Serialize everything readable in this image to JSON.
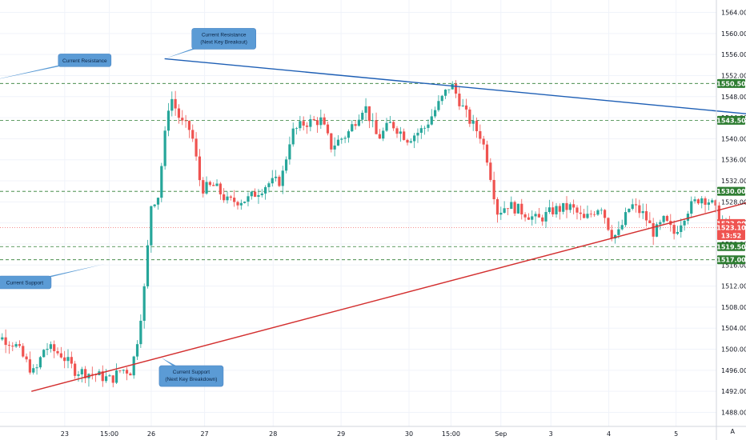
{
  "chart_data": {
    "type": "candlestick",
    "ylim": [
      1486,
      1566
    ],
    "y_ticks": [
      1488,
      1492,
      1496,
      1500,
      1504,
      1508,
      1512,
      1516,
      1520,
      1524,
      1528,
      1532,
      1536,
      1540,
      1544,
      1548,
      1552,
      1556,
      1560,
      1564
    ],
    "x_ticks": [
      "23",
      "15:00",
      "26",
      "27",
      "28",
      "29",
      "30",
      "15:00",
      "Sep",
      "3",
      "4",
      "5"
    ],
    "colors": {
      "up": "#26a69a",
      "down": "#ef5350",
      "resistance_line": "#1e5fb5",
      "support_line": "#d32f2f",
      "level_line": "#2e7d32",
      "callout": "#5b9bd5"
    },
    "key_levels": [
      1550.5,
      1543.5,
      1530.0,
      1519.5,
      1517.0
    ],
    "level_labels": [
      "1550.50",
      "1543.50",
      "1530.00",
      "1519.50",
      "1517.00"
    ],
    "price_labels": [
      {
        "text": "1523.90",
        "value": 1523.9,
        "color": "#ef5350"
      },
      {
        "text": "1523.10",
        "value": 1523.1,
        "color": "#ef5350"
      },
      {
        "text": "13:52",
        "value": 1521.6,
        "color": "#ef5350"
      }
    ],
    "current_price": 1523.1,
    "trendlines": [
      {
        "name": "resistance",
        "color": "#1e5fb5",
        "from": [
          0.2,
          1555.2
        ],
        "to": [
          9.05,
          1544.6
        ]
      },
      {
        "name": "support",
        "color": "#d32f2f",
        "from": [
          -1.8,
          1492.0
        ],
        "to": [
          9.05,
          1528.2
        ]
      }
    ],
    "candle_anchors": [
      [
        -2.55,
        1503.0
      ],
      [
        -2.3,
        1502.5
      ],
      [
        -2.05,
        1501.0
      ],
      [
        -1.85,
        1497.0
      ],
      [
        -1.75,
        1495.2
      ],
      [
        -1.6,
        1500.5
      ],
      [
        -1.35,
        1499.0
      ],
      [
        -1.15,
        1496.0
      ],
      [
        -0.85,
        1495.2
      ],
      [
        -0.6,
        1494.2
      ],
      [
        -0.45,
        1496.2
      ],
      [
        -0.3,
        1495.8
      ],
      [
        -0.2,
        1502.5
      ],
      [
        -0.1,
        1512.0
      ],
      [
        0.0,
        1527.8
      ],
      [
        0.1,
        1529.0
      ],
      [
        0.2,
        1540.0
      ],
      [
        0.28,
        1548.5
      ],
      [
        0.45,
        1543.0
      ],
      [
        0.6,
        1541.5
      ],
      [
        0.75,
        1530.5
      ],
      [
        0.95,
        1531.0
      ],
      [
        1.15,
        1528.0
      ],
      [
        1.45,
        1528.5
      ],
      [
        1.75,
        1531.5
      ],
      [
        1.95,
        1532.0
      ],
      [
        2.1,
        1541.0
      ],
      [
        2.3,
        1543.0
      ],
      [
        2.55,
        1543.5
      ],
      [
        2.7,
        1538.5
      ],
      [
        2.95,
        1541.0
      ],
      [
        3.2,
        1546.5
      ],
      [
        3.4,
        1540.0
      ],
      [
        3.6,
        1543.0
      ],
      [
        3.85,
        1540.0
      ],
      [
        4.1,
        1542.0
      ],
      [
        4.5,
        1550.5
      ],
      [
        4.75,
        1544.0
      ],
      [
        4.95,
        1540.5
      ],
      [
        5.05,
        1536.0
      ],
      [
        5.2,
        1526.0
      ],
      [
        5.35,
        1527.5
      ],
      [
        5.6,
        1526.0
      ],
      [
        5.8,
        1524.5
      ],
      [
        6.05,
        1526.5
      ],
      [
        6.3,
        1527.0
      ],
      [
        6.5,
        1524.5
      ],
      [
        6.75,
        1527.5
      ],
      [
        6.9,
        1522.0
      ],
      [
        7.0,
        1521.5
      ],
      [
        7.2,
        1527.5
      ],
      [
        7.4,
        1525.5
      ],
      [
        7.55,
        1522.0
      ],
      [
        7.7,
        1524.5
      ],
      [
        7.85,
        1522.0
      ],
      [
        8.05,
        1526.5
      ],
      [
        8.25,
        1529.0
      ],
      [
        8.4,
        1528.0
      ],
      [
        8.55,
        1524.5
      ],
      [
        8.7,
        1523.1
      ]
    ],
    "callouts": [
      {
        "lines": [
          "Current Resistance",
          "(Next Key Breakout)"
        ],
        "box_anchor": [
          1.09,
          1559.0
        ],
        "tip": [
          0.2,
          1555.2
        ]
      },
      {
        "lines": [
          "Current Resistance"
        ],
        "box_anchor": [
          -1.0,
          1554.9
        ],
        "tip": [
          -2.5,
          1550.8
        ]
      },
      {
        "lines": [
          "Current Support"
        ],
        "box_anchor": [
          -1.9,
          1512.7
        ],
        "tip": [
          -0.7,
          1516.2
        ]
      },
      {
        "lines": [
          "Current Support",
          "(Next Key Breakdown)"
        ],
        "box_anchor": [
          0.6,
          1494.9
        ],
        "tip": [
          0.15,
          1498.4
        ]
      }
    ],
    "scale_mode": "A"
  }
}
